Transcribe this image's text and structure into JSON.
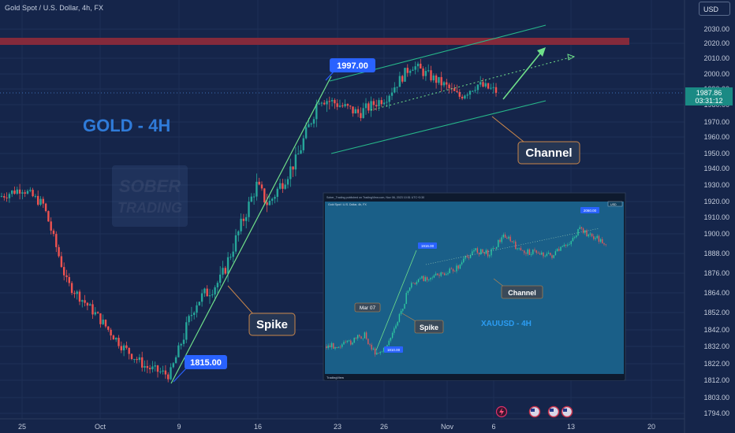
{
  "header": {
    "symbol": "Gold Spot / U.S. Dollar, 4h, FX",
    "currency": "USD"
  },
  "chart_title": "GOLD - 4H",
  "watermark": {
    "line1": "SOBER",
    "line2": "TRADING"
  },
  "annotations": {
    "low_label": "1815.00",
    "high_label": "1997.00",
    "spike_label": "Spike",
    "channel_label": "Channel"
  },
  "price_badge": {
    "price": "1987.86",
    "countdown": "03:31:12"
  },
  "colors": {
    "bg": "#15254a",
    "up": "#26a69a",
    "down": "#ef5350",
    "zone": "#8a2a3a",
    "label_blue": "#2962ff",
    "title_blue": "#2f7bd9",
    "guide_green": "#4cd07d"
  },
  "chart_data": {
    "type": "candlestick",
    "title": "GOLD - 4H",
    "y_axis": {
      "ylim": [
        1791,
        2038
      ],
      "ticks": [
        2030.0,
        2020.0,
        2010.0,
        2000.0,
        1990.0,
        1980.0,
        1970.0,
        1960.0,
        1950.0,
        1940.0,
        1930.0,
        1920.0,
        1910.0,
        1900.0,
        1888.0,
        1876.0,
        1864.0,
        1852.0,
        1842.0,
        1832.0,
        1822.0,
        1812.0,
        1803.0,
        1794.0
      ]
    },
    "x_axis": {
      "ticks": [
        "25",
        "Oct",
        "9",
        "16",
        "23",
        "26",
        "Nov",
        "6",
        "13",
        "20"
      ]
    },
    "resistance_zone": [
      2018,
      2022
    ],
    "current_price": 1987.86,
    "key_levels": {
      "low": 1815.0,
      "high": 1997.0
    },
    "close_path": [
      {
        "t": "Sep 22",
        "price": 1923
      },
      {
        "t": "Sep 25",
        "price": 1928
      },
      {
        "t": "Sep 27",
        "price": 1918
      },
      {
        "t": "Sep 29",
        "price": 1870
      },
      {
        "t": "Oct 2",
        "price": 1848
      },
      {
        "t": "Oct 4",
        "price": 1832
      },
      {
        "t": "Oct 6",
        "price": 1820
      },
      {
        "t": "Oct 8",
        "price": 1815
      },
      {
        "t": "Oct 10",
        "price": 1858
      },
      {
        "t": "Oct 12",
        "price": 1872
      },
      {
        "t": "Oct 13",
        "price": 1930
      },
      {
        "t": "Oct 16",
        "price": 1918
      },
      {
        "t": "Oct 18",
        "price": 1945
      },
      {
        "t": "Oct 20",
        "price": 1985
      },
      {
        "t": "Oct 23",
        "price": 1975
      },
      {
        "t": "Oct 26",
        "price": 1985
      },
      {
        "t": "Oct 27",
        "price": 2006
      },
      {
        "t": "Oct 30",
        "price": 1992
      },
      {
        "t": "Nov 1",
        "price": 1985
      },
      {
        "t": "Nov 3",
        "price": 1993
      },
      {
        "t": "Nov 6",
        "price": 1988
      }
    ]
  },
  "inset": {
    "header": "Sober_Trading published on TradingView.com, Nov 06, 2023 10:51 UTC+3:30",
    "symbol": "Gold Spot / U.S. Dollar, 4h, FX",
    "currency": "USD",
    "title": "XAUUSD - 4H",
    "labels": {
      "mar": "Mar 07",
      "spike": "Spike",
      "channel": "Channel",
      "low": "1810.00",
      "mid": "1916.00",
      "high": "2060.00"
    },
    "footer": "TradingView"
  }
}
